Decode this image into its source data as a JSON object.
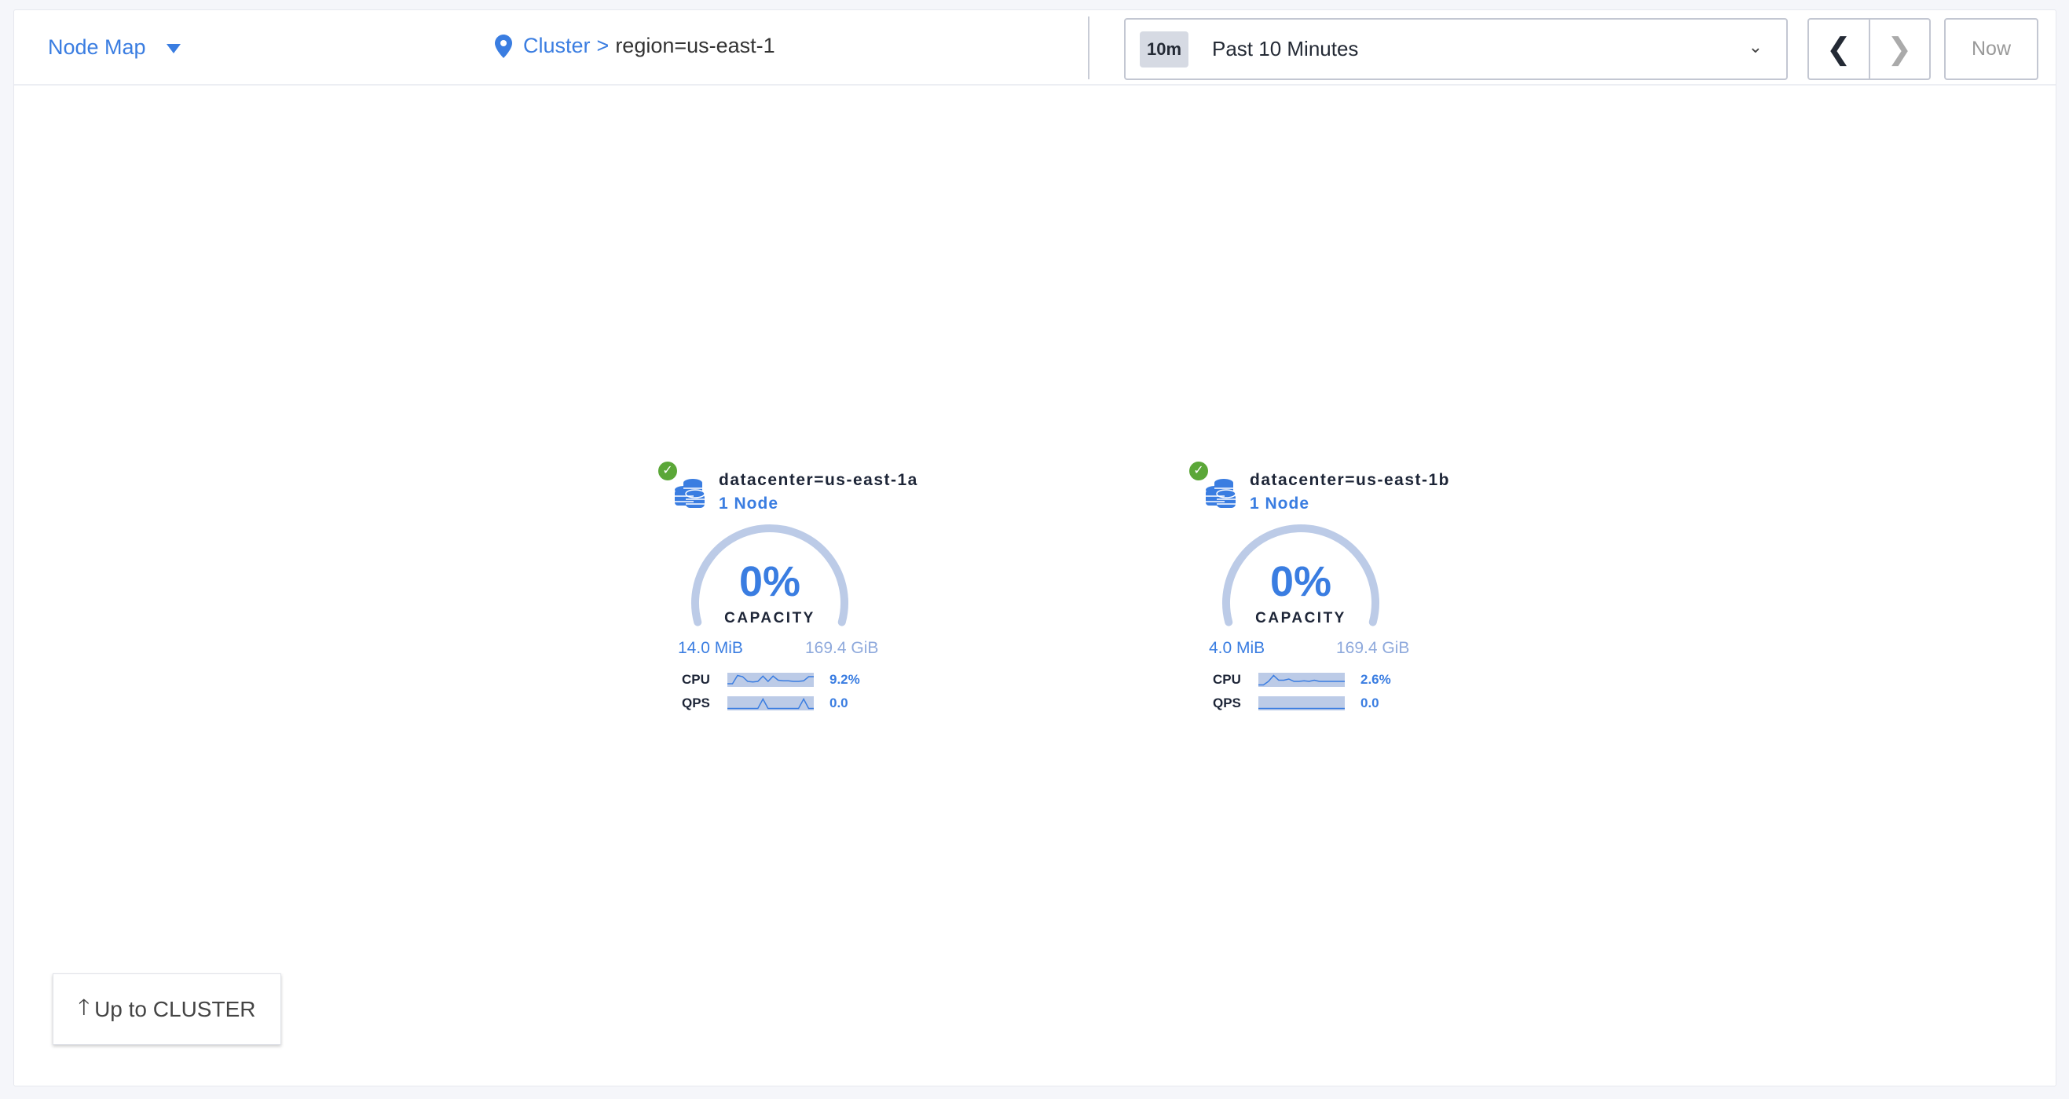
{
  "header": {
    "view_selector": "Node Map",
    "breadcrumb": {
      "root": "Cluster",
      "separator": ">",
      "current": "region=us-east-1"
    },
    "time_range": {
      "badge": "10m",
      "label": "Past 10 Minutes"
    },
    "now_label": "Now"
  },
  "colors": {
    "accent": "#3a7de1",
    "healthy": "#5ba738",
    "gauge_track": "#bccbe7"
  },
  "localities": [
    {
      "name": "datacenter=us-east-1a",
      "nodes": "1 Node",
      "status": "healthy",
      "capacity_pct": "0%",
      "capacity_label": "CAPACITY",
      "used": "14.0 MiB",
      "total": "169.4 GiB",
      "cpu": {
        "label": "CPU",
        "value": "9.2%",
        "spark": [
          0.2,
          0.2,
          0.9,
          0.8,
          0.4,
          0.35,
          0.4,
          0.85,
          0.4,
          0.85,
          0.5,
          0.45,
          0.45,
          0.4,
          0.4,
          0.45,
          0.8,
          0.8
        ]
      },
      "qps": {
        "label": "QPS",
        "value": "0.0",
        "spark": [
          0.1,
          0.1,
          0.1,
          0.1,
          0.1,
          0.1,
          0.1,
          0.9,
          0.1,
          0.1,
          0.1,
          0.1,
          0.1,
          0.1,
          0.1,
          0.9,
          0.1,
          0.1
        ]
      }
    },
    {
      "name": "datacenter=us-east-1b",
      "nodes": "1 Node",
      "status": "healthy",
      "capacity_pct": "0%",
      "capacity_label": "CAPACITY",
      "used": "4.0 MiB",
      "total": "169.4 GiB",
      "cpu": {
        "label": "CPU",
        "value": "2.6%",
        "spark": [
          0.1,
          0.1,
          0.4,
          0.9,
          0.5,
          0.5,
          0.6,
          0.4,
          0.4,
          0.45,
          0.4,
          0.5,
          0.4,
          0.4,
          0.4,
          0.4,
          0.4,
          0.4
        ]
      },
      "qps": {
        "label": "QPS",
        "value": "0.0",
        "spark": [
          0.1,
          0.1,
          0.1,
          0.1,
          0.1,
          0.1,
          0.1,
          0.1,
          0.1,
          0.1,
          0.1,
          0.1,
          0.1,
          0.1,
          0.1,
          0.1,
          0.1,
          0.1
        ]
      }
    }
  ],
  "up_button": "Up to CLUSTER"
}
